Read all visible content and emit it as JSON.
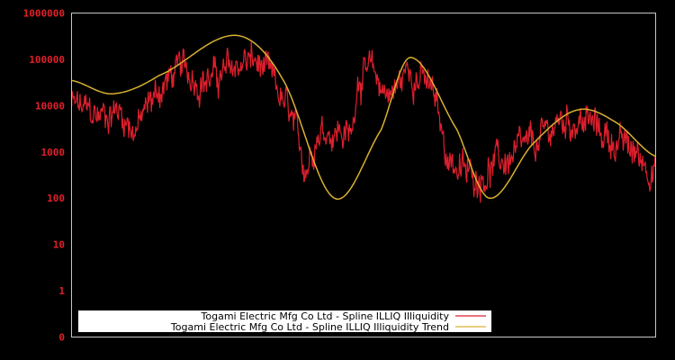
{
  "chart_data": {
    "type": "line",
    "title": "",
    "xlabel": "",
    "ylabel": "",
    "y_scale": "log",
    "yticks": [
      "1000000",
      "100000",
      "10000",
      "1000",
      "100",
      "10",
      "1",
      "0"
    ],
    "ylim": [
      0,
      1000000
    ],
    "grid": false,
    "legend_position": "lower-center",
    "series": [
      {
        "name": "Togami Electric Mfg Co Ltd - Spline ILLIQ Illiquidity",
        "color": "#dc1f2d",
        "style": "noisy",
        "approx_points": [
          {
            "x": 0.0,
            "y": 10000
          },
          {
            "x": 0.04,
            "y": 6000
          },
          {
            "x": 0.08,
            "y": 8000
          },
          {
            "x": 0.11,
            "y": 3500
          },
          {
            "x": 0.14,
            "y": 15000
          },
          {
            "x": 0.18,
            "y": 50000
          },
          {
            "x": 0.25,
            "y": 40000
          },
          {
            "x": 0.3,
            "y": 90000
          },
          {
            "x": 0.33,
            "y": 50000
          },
          {
            "x": 0.37,
            "y": 7000
          },
          {
            "x": 0.4,
            "y": 600
          },
          {
            "x": 0.42,
            "y": 3000
          },
          {
            "x": 0.46,
            "y": 3000
          },
          {
            "x": 0.48,
            "y": 2500
          },
          {
            "x": 0.49,
            "y": 50000
          },
          {
            "x": 0.55,
            "y": 20000
          },
          {
            "x": 0.58,
            "y": 60000
          },
          {
            "x": 0.62,
            "y": 15000
          },
          {
            "x": 0.64,
            "y": 1200
          },
          {
            "x": 0.68,
            "y": 300
          },
          {
            "x": 0.72,
            "y": 500
          },
          {
            "x": 0.76,
            "y": 800
          },
          {
            "x": 0.8,
            "y": 1500
          },
          {
            "x": 0.83,
            "y": 4000
          },
          {
            "x": 0.87,
            "y": 5000
          },
          {
            "x": 0.91,
            "y": 2500
          },
          {
            "x": 0.95,
            "y": 1200
          },
          {
            "x": 1.0,
            "y": 500
          }
        ]
      },
      {
        "name": "Togami Electric Mfg Co Ltd - Spline ILLIQ Illiquidity Trend",
        "color": "#d8b030",
        "style": "smooth",
        "approx_points": [
          {
            "x": 0.0,
            "y": 35000
          },
          {
            "x": 0.07,
            "y": 18000
          },
          {
            "x": 0.15,
            "y": 45000
          },
          {
            "x": 0.28,
            "y": 330000
          },
          {
            "x": 0.36,
            "y": 40000
          },
          {
            "x": 0.45,
            "y": 100
          },
          {
            "x": 0.53,
            "y": 3000
          },
          {
            "x": 0.58,
            "y": 110000
          },
          {
            "x": 0.66,
            "y": 3000
          },
          {
            "x": 0.715,
            "y": 100
          },
          {
            "x": 0.79,
            "y": 1500
          },
          {
            "x": 0.865,
            "y": 8000
          },
          {
            "x": 0.93,
            "y": 4500
          },
          {
            "x": 1.0,
            "y": 800
          }
        ]
      }
    ]
  },
  "legend": {
    "items": [
      {
        "label": "Togami Electric Mfg Co Ltd - Spline ILLIQ Illiquidity",
        "color": "#dc1f2d"
      },
      {
        "label": "Togami Electric Mfg Co Ltd - Spline ILLIQ Illiquidity Trend",
        "color": "#d8b030"
      }
    ]
  },
  "colors": {
    "background": "#000000",
    "axis": "#c8c8c8",
    "tick_label": "#e0202a",
    "legend_bg": "#ffffff"
  }
}
